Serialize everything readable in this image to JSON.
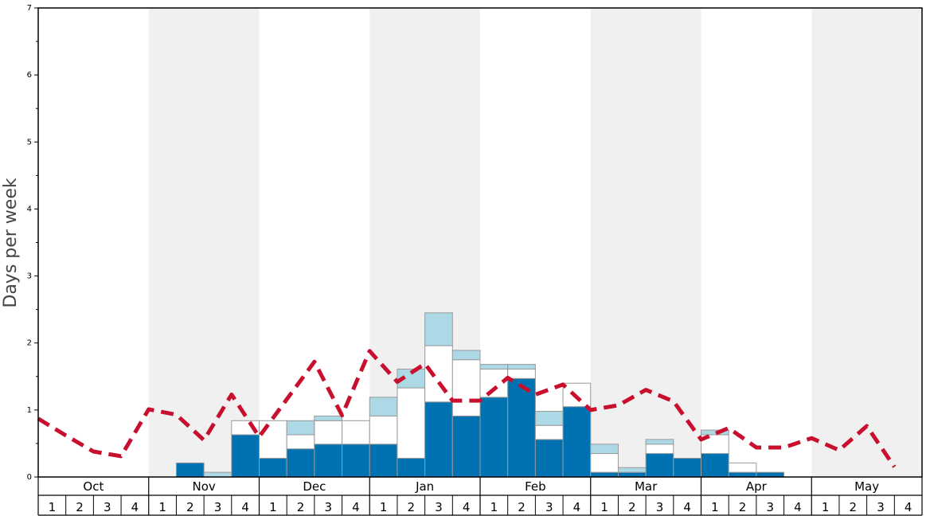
{
  "chart_data": {
    "type": "bar",
    "ylabel": "Days per week",
    "ylim": [
      0,
      7
    ],
    "yticks": [
      "0",
      "1",
      "2",
      "3",
      "4",
      "5",
      "6",
      "7"
    ],
    "months": [
      "Oct",
      "Nov",
      "Dec",
      "Jan",
      "Feb",
      "Mar",
      "Apr",
      "May"
    ],
    "week_labels": [
      "1",
      "2",
      "3",
      "4"
    ],
    "grid": false,
    "colors": {
      "layer1": "#0072b2",
      "layer2": "#ffffff",
      "layer3": "#add8e6",
      "line": "#c8102e",
      "shade": "#f0f0f0"
    },
    "layer1": [
      0,
      0,
      0,
      0,
      0,
      0.21,
      0,
      0.63,
      0.28,
      0.42,
      0.49,
      0.49,
      0.49,
      0.28,
      1.12,
      0.91,
      1.19,
      1.47,
      0.56,
      1.05,
      0.07,
      0.07,
      0.35,
      0.28,
      0.35,
      0.07,
      0.07,
      0,
      0,
      0,
      0,
      0
    ],
    "layer2": [
      0,
      0,
      0,
      0,
      0,
      0,
      0,
      0.21,
      0.56,
      0.21,
      0.35,
      0.35,
      0.42,
      1.05,
      0.84,
      0.84,
      0.42,
      0.14,
      0.21,
      0.35,
      0.28,
      0,
      0.14,
      0,
      0.28,
      0.14,
      0,
      0,
      0,
      0,
      0,
      0
    ],
    "layer3": [
      0,
      0,
      0,
      0,
      0,
      0,
      0.07,
      0,
      0,
      0.21,
      0.07,
      0,
      0.28,
      0.28,
      0.49,
      0.14,
      0.07,
      0.07,
      0.21,
      0,
      0.14,
      0.07,
      0.07,
      0,
      0.07,
      0,
      0,
      0,
      0,
      0,
      0,
      0
    ],
    "line": [
      0.87,
      0.62,
      0.38,
      0.31,
      1.01,
      0.93,
      0.55,
      1.23,
      0.6,
      1.16,
      1.72,
      0.92,
      1.88,
      1.42,
      1.69,
      1.14,
      1.14,
      1.48,
      1.23,
      1.38,
      1.0,
      1.07,
      1.3,
      1.13,
      0.56,
      0.73,
      0.44,
      0.44,
      0.58,
      0.4,
      0.76,
      0.15
    ]
  }
}
